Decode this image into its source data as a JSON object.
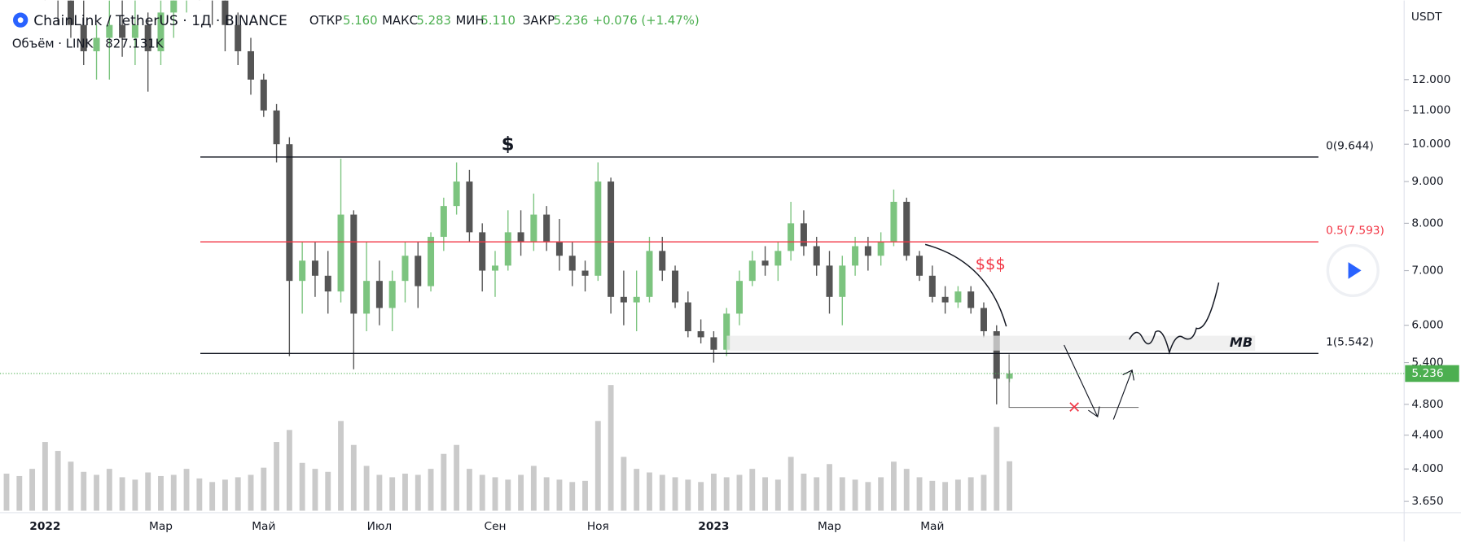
{
  "header": {
    "symbol": "ChainLink / TetherUS · 1Д · BINANCE",
    "open_label": "ОТКР",
    "open": {
      "value": 5.16,
      "label": "5.160"
    },
    "high_label": "МАКС",
    "high": {
      "value": 5.283,
      "label": "5.283"
    },
    "low_label": "МИН",
    "low": {
      "value": 5.11,
      "label": "5.110"
    },
    "close_label": "ЗАКР",
    "close": {
      "value": 5.236,
      "label": "5.236"
    },
    "change": {
      "value": 0.076,
      "label": "+0.076 (+1.47%)"
    },
    "volume_title": "Объём · LINK",
    "volume": {
      "value": 827.131,
      "label": "827.131K"
    },
    "currency": "USDT"
  },
  "chart_data": {
    "type": "candlestick",
    "log_scale": true,
    "categories": [
      null,
      null,
      null,
      "2022",
      null,
      null,
      null,
      null,
      null,
      null,
      null,
      null,
      "Мар",
      null,
      null,
      null,
      null,
      null,
      null,
      null,
      "Май",
      null,
      null,
      null,
      null,
      null,
      null,
      null,
      null,
      "Июл",
      null,
      null,
      null,
      null,
      null,
      null,
      null,
      null,
      "Сен",
      null,
      null,
      null,
      null,
      null,
      null,
      null,
      "Ноя",
      null,
      null,
      null,
      null,
      null,
      null,
      null,
      null,
      "2023",
      null,
      null,
      null,
      null,
      null,
      null,
      null,
      null,
      "Мар",
      null,
      null,
      null,
      null,
      null,
      null,
      null,
      "Май",
      null,
      null,
      null,
      null,
      null,
      null
    ],
    "series": [
      {
        "name": "LINKUSDT",
        "up_color": "#7cc47f",
        "down_color": "#555555",
        "open": [
          22,
          21,
          19,
          17,
          16,
          15,
          14,
          13,
          13.5,
          14,
          13.5,
          14,
          13,
          14.5,
          15.5,
          16.5,
          16,
          15,
          14,
          13,
          12,
          11,
          10,
          6.8,
          7.2,
          6.9,
          6.6,
          8.2,
          6.2,
          6.8,
          6.3,
          6.8,
          7.3,
          6.7,
          7.7,
          8.4,
          9.0,
          7.8,
          7.0,
          7.1,
          7.8,
          7.6,
          8.2,
          7.6,
          7.3,
          7.0,
          6.9,
          9.0,
          6.5,
          6.4,
          6.5,
          7.4,
          7.0,
          6.4,
          5.9,
          5.8,
          5.6,
          6.2,
          6.8,
          7.2,
          7.1,
          7.4,
          8.0,
          7.5,
          7.1,
          6.5,
          7.1,
          7.5,
          7.3,
          7.6,
          8.5,
          7.3,
          6.9,
          6.5,
          6.4,
          6.6,
          6.3,
          5.9,
          5.16
        ],
        "high": [
          25,
          23,
          21,
          19,
          17,
          16,
          15,
          14,
          15,
          15.5,
          16,
          14.5,
          15,
          17,
          18,
          17.5,
          16.5,
          15.5,
          14.5,
          13.5,
          12.2,
          11.2,
          10.2,
          7.6,
          7.6,
          7.4,
          9.6,
          8.3,
          7.6,
          7.2,
          7.0,
          7.6,
          7.6,
          7.8,
          8.6,
          9.5,
          9.3,
          8.0,
          7.4,
          8.3,
          8.3,
          8.7,
          8.4,
          8.1,
          7.6,
          7.2,
          9.5,
          9.1,
          7.0,
          7.0,
          7.7,
          7.7,
          7.1,
          6.6,
          6.1,
          5.9,
          6.3,
          7.0,
          7.4,
          7.5,
          7.6,
          8.5,
          8.3,
          7.7,
          7.4,
          7.3,
          7.7,
          7.7,
          7.8,
          8.8,
          8.6,
          7.4,
          7.1,
          6.7,
          6.7,
          6.7,
          6.4,
          6.0,
          5.283
        ],
        "low": [
          19,
          18,
          16,
          15,
          14,
          13.5,
          12.5,
          12,
          12,
          12.8,
          12.5,
          11.6,
          12.5,
          13.5,
          14.5,
          15,
          14,
          13,
          12.5,
          11.5,
          10.8,
          9.5,
          5.5,
          6.2,
          6.5,
          6.2,
          6.4,
          5.3,
          5.9,
          6.0,
          5.9,
          6.4,
          6.3,
          6.6,
          7.4,
          8.2,
          7.6,
          6.6,
          6.5,
          7.0,
          7.3,
          7.4,
          7.4,
          7.0,
          6.7,
          6.6,
          6.8,
          6.2,
          6.0,
          5.9,
          6.4,
          6.8,
          6.3,
          5.8,
          5.7,
          5.4,
          5.5,
          6.0,
          6.7,
          6.9,
          6.8,
          7.2,
          7.3,
          6.9,
          6.2,
          6.0,
          6.9,
          7.0,
          7.1,
          7.5,
          7.2,
          6.8,
          6.4,
          6.2,
          6.3,
          6.2,
          5.8,
          4.8,
          5.11
        ],
        "close": [
          21,
          19,
          17,
          16,
          15,
          14,
          13,
          13.5,
          14,
          13.5,
          14,
          13,
          14.5,
          15.5,
          16.5,
          16,
          15,
          14,
          13,
          12,
          11,
          10,
          6.8,
          7.2,
          6.9,
          6.6,
          8.2,
          6.2,
          6.8,
          6.3,
          6.8,
          7.3,
          6.7,
          7.7,
          8.4,
          9.0,
          7.8,
          7.0,
          7.1,
          7.8,
          7.6,
          8.2,
          7.6,
          7.3,
          7.0,
          6.9,
          9.0,
          6.5,
          6.4,
          6.5,
          7.4,
          7.0,
          6.4,
          5.9,
          5.8,
          5.6,
          6.2,
          6.8,
          7.2,
          7.1,
          7.4,
          8.0,
          7.5,
          7.1,
          6.5,
          7.1,
          7.5,
          7.3,
          7.6,
          8.5,
          7.3,
          6.9,
          6.5,
          6.4,
          6.6,
          6.3,
          5.9,
          5.16,
          5.236
        ]
      },
      {
        "name": "Объём",
        "axis": "y2",
        "color": "#9e9e9e",
        "values": [
          620,
          580,
          700,
          1150,
          1000,
          820,
          650,
          600,
          700,
          560,
          520,
          640,
          580,
          600,
          700,
          540,
          480,
          520,
          560,
          600,
          720,
          1150,
          1350,
          800,
          700,
          650,
          1500,
          1100,
          750,
          600,
          560,
          620,
          600,
          700,
          950,
          1100,
          700,
          600,
          560,
          520,
          600,
          750,
          560,
          520,
          480,
          500,
          1500,
          2100,
          900,
          700,
          640,
          600,
          560,
          520,
          480,
          620,
          560,
          600,
          700,
          560,
          520,
          900,
          620,
          560,
          780,
          560,
          520,
          480,
          560,
          820,
          700,
          560,
          500,
          480,
          520,
          560,
          600,
          1400,
          827.131
        ]
      }
    ],
    "ylim": [
      3.555,
      15.0
    ],
    "yticks": [
      {
        "value": 3.65,
        "label": "3.650"
      },
      {
        "value": 4,
        "label": "4.000"
      },
      {
        "value": 4.4,
        "label": "4.400"
      },
      {
        "value": 4.8,
        "label": "4.800"
      },
      {
        "value": 5.4,
        "label": "5.400"
      },
      {
        "value": 6,
        "label": "6.000"
      },
      {
        "value": 7,
        "label": "7.000"
      },
      {
        "value": 8,
        "label": "8.000"
      },
      {
        "value": 9,
        "label": "9.000"
      },
      {
        "value": 10,
        "label": "10.000"
      },
      {
        "value": 11,
        "label": "11.000"
      },
      {
        "value": 12,
        "label": "12.000"
      }
    ],
    "y2lim": [
      0,
      2800
    ],
    "levels": [
      {
        "value": 9.644,
        "label": "0(9.644)",
        "color": "#131722"
      },
      {
        "value": 7.593,
        "label": "0.5(7.593)",
        "color": "#f23645"
      },
      {
        "value": 5.542,
        "label": "1(5.542)",
        "color": "#131722"
      }
    ],
    "last_price_color": "#4caf50",
    "annotations": [
      "$",
      "$$$",
      "MB",
      "×"
    ]
  }
}
